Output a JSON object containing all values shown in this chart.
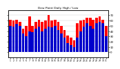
{
  "title": "Dew Point Daily High / Low",
  "ylim": [
    -10,
    80
  ],
  "yticks": [
    0,
    10,
    20,
    30,
    40,
    50,
    60,
    70
  ],
  "ytick_labels": [
    "0",
    "1",
    "2",
    "3",
    "4",
    "5",
    "6",
    "7"
  ],
  "background_color": "#ffffff",
  "grid_color": "#cccccc",
  "high_color": "#ff0000",
  "low_color": "#0000cc",
  "days": 31,
  "highs": [
    62,
    60,
    62,
    58,
    44,
    50,
    68,
    50,
    58,
    62,
    58,
    60,
    70,
    60,
    62,
    58,
    50,
    42,
    32,
    28,
    22,
    55,
    60,
    62,
    65,
    65,
    62,
    65,
    68,
    62,
    50
  ],
  "lows": [
    50,
    48,
    54,
    50,
    36,
    30,
    40,
    38,
    45,
    48,
    40,
    44,
    48,
    47,
    50,
    42,
    36,
    28,
    18,
    14,
    10,
    28,
    40,
    48,
    55,
    50,
    44,
    55,
    58,
    55,
    30
  ]
}
